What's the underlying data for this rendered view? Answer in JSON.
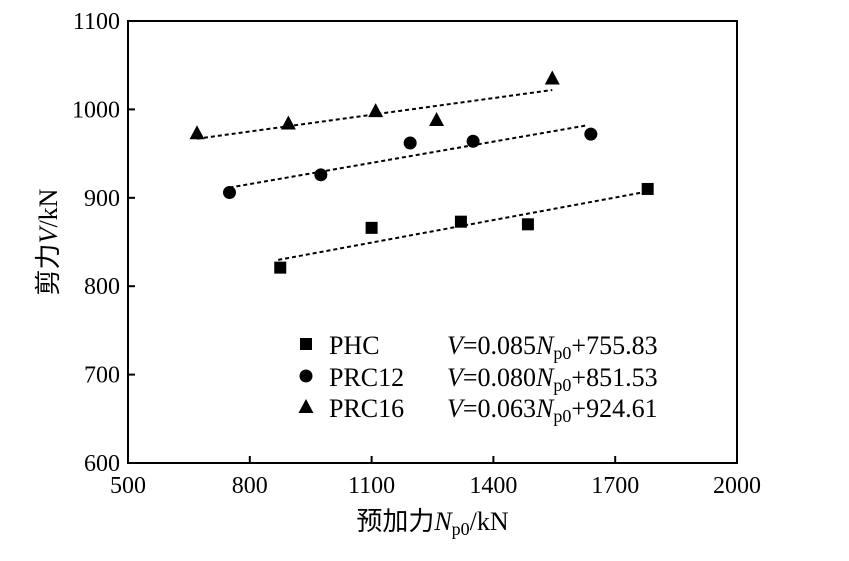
{
  "chart_data": {
    "type": "scatter",
    "xlabel": {
      "pre": "预加力",
      "var": "N",
      "sub": "p0",
      "unit": "/kN"
    },
    "ylabel": {
      "pre": "剪力",
      "var": "V",
      "unit": "/kN"
    },
    "xlim": [
      500,
      2000
    ],
    "ylim": [
      600,
      1100
    ],
    "xticks": [
      "500",
      "800",
      "1100",
      "1400",
      "1700",
      "2000"
    ],
    "yticks": [
      "600",
      "700",
      "800",
      "900",
      "1000",
      "1100"
    ],
    "grid": false,
    "legend_position": "bottom-right",
    "series": [
      {
        "name": "PHC",
        "marker": "square",
        "points": [
          [
            875,
            821
          ],
          [
            1100,
            866
          ],
          [
            1320,
            873
          ],
          [
            1485,
            870
          ],
          [
            1780,
            910
          ]
        ],
        "fit": {
          "slope": 0.085,
          "intercept": 755.83,
          "x_range": [
            870,
            1775
          ]
        },
        "equation": {
          "lhs": "V",
          "coef": "=0.085",
          "var": "N",
          "sub": "p0",
          "const": "+755.83"
        }
      },
      {
        "name": "PRC12",
        "marker": "circle",
        "points": [
          [
            750,
            906
          ],
          [
            975,
            926
          ],
          [
            1195,
            962
          ],
          [
            1350,
            964
          ],
          [
            1640,
            972
          ]
        ],
        "fit": {
          "slope": 0.08,
          "intercept": 851.53,
          "x_range": [
            750,
            1630
          ]
        },
        "equation": {
          "lhs": "V",
          "coef": "=0.080",
          "var": "N",
          "sub": "p0",
          "const": "+851.53"
        }
      },
      {
        "name": "PRC16",
        "marker": "triangle",
        "points": [
          [
            670,
            973
          ],
          [
            895,
            984
          ],
          [
            1110,
            998
          ],
          [
            1260,
            988
          ],
          [
            1545,
            1035
          ]
        ],
        "fit": {
          "slope": 0.063,
          "intercept": 924.61,
          "x_range": [
            670,
            1545
          ]
        },
        "equation": {
          "lhs": "V",
          "coef": "=0.063",
          "var": "N",
          "sub": "p0",
          "const": "+924.61"
        }
      }
    ]
  }
}
